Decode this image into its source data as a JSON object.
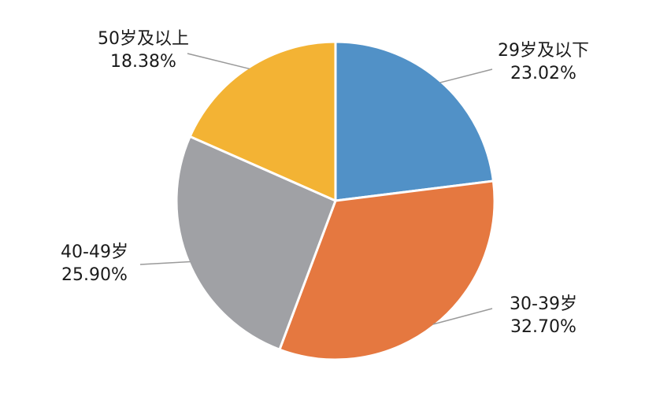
{
  "chart_data": {
    "type": "pie",
    "title": "",
    "slices": [
      {
        "label": "29岁及以下",
        "percent_text": "23.02%",
        "value": 23.02,
        "color": "#5191C7"
      },
      {
        "label": "30-39岁",
        "percent_text": "32.70%",
        "value": 32.7,
        "color": "#E57840"
      },
      {
        "label": "40-49岁",
        "percent_text": "25.90%",
        "value": 25.9,
        "color": "#A0A1A5"
      },
      {
        "label": "50岁及以上",
        "percent_text": "18.38%",
        "value": 18.38,
        "color": "#F3B334"
      }
    ],
    "start_angle": "12 o'clock",
    "direction": "clockwise",
    "legend": "none",
    "label_style": "outside with leader lines"
  }
}
